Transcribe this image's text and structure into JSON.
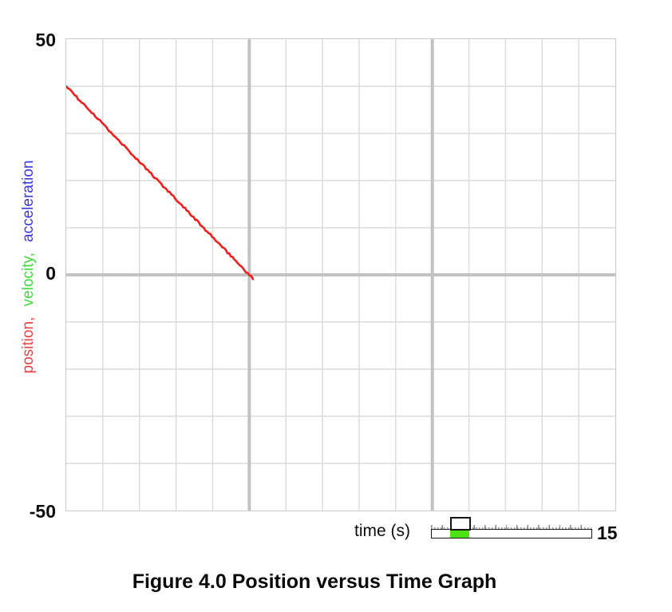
{
  "caption": "Figure 4.0 Position versus Time Graph",
  "chart_data": {
    "type": "line",
    "title": "",
    "xlabel": "time (s)",
    "ylabel_parts": [
      {
        "text": "position,",
        "color": "#e64444"
      },
      {
        "text": "velocity,",
        "color": "#3bdd3b"
      },
      {
        "text": "acceleration",
        "color": "#3a3ae0"
      }
    ],
    "xlim": [
      0,
      15
    ],
    "ylim": [
      -50,
      50
    ],
    "x_grid_step": 1,
    "x_major_grid_step": 5,
    "y_grid_step": 10,
    "y_major_value": 0,
    "grid": true,
    "legend": "none",
    "y_ticks": [
      {
        "value": 50,
        "label": "50"
      },
      {
        "value": 0,
        "label": "0"
      },
      {
        "value": -50,
        "label": "-50"
      }
    ],
    "series": [
      {
        "name": "position",
        "color": "#f11d1d",
        "points": [
          [
            0,
            40
          ],
          [
            5.1,
            -0.8
          ]
        ],
        "style": "jittery straight segment, slope about -8 per second"
      }
    ],
    "colors": {
      "grid_minor": "#dcdcdc",
      "grid_major": "#c2c2c2",
      "border": "#c9c9c9",
      "background": "#ffffff"
    }
  },
  "time_slider": {
    "label": "time (s)",
    "max_label": "15",
    "thumb_fraction": 0.185,
    "green_color": "#4ce314",
    "track_color": "#ffffff",
    "border_color": "#161616"
  }
}
